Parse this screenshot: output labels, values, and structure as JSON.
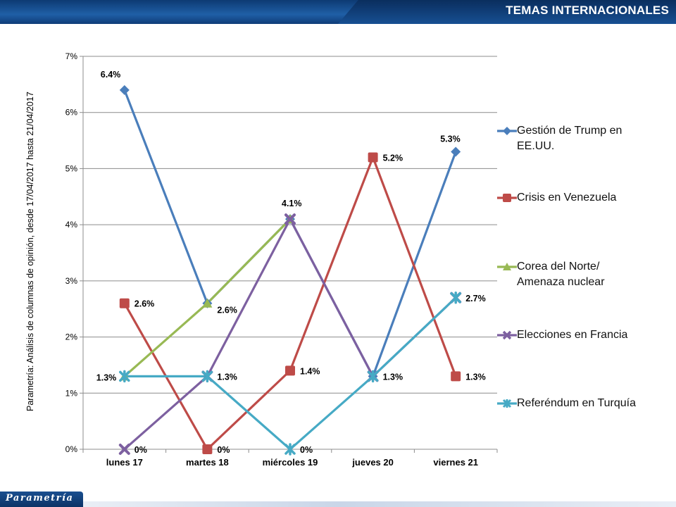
{
  "header": {
    "title": "TEMAS INTERNACIONALES"
  },
  "footer": {
    "logo_text": "Parametría"
  },
  "side_note": "Parametría: Análisis de columnas de opinión, desde 17/04/2017 hasta 21/04/2017",
  "chart_data": {
    "type": "line",
    "categories": [
      "lunes 17",
      "martes 18",
      "miércoles 19",
      "jueves 20",
      "viernes 21"
    ],
    "y_ticks": [
      "0%",
      "1%",
      "2%",
      "3%",
      "4%",
      "5%",
      "6%",
      "7%"
    ],
    "ylim": [
      0,
      7
    ],
    "grid": true,
    "legend_position": "right",
    "series": [
      {
        "name_lines": [
          "Gestión de Trump en",
          "EE.UU."
        ],
        "color": "#4a7ebb",
        "marker": "diamond",
        "values": [
          6.4,
          2.6,
          4.1,
          1.3,
          5.3
        ],
        "labels": [
          "6.4%",
          "",
          "",
          "",
          "5.3%"
        ]
      },
      {
        "name_lines": [
          "Crisis en Venezuela"
        ],
        "color": "#be4b48",
        "marker": "square",
        "values": [
          2.6,
          0,
          1.4,
          5.2,
          1.3
        ],
        "labels": [
          "2.6%",
          "0%",
          "1.4%",
          "5.2%",
          "1.3%"
        ]
      },
      {
        "name_lines": [
          "Corea del Norte/",
          "Amenaza nuclear"
        ],
        "color": "#98b954",
        "marker": "triangle",
        "values": [
          1.3,
          2.6,
          4.1,
          null,
          null
        ],
        "labels": [
          "",
          "2.6%",
          "4.1%",
          "",
          ""
        ]
      },
      {
        "name_lines": [
          "Elecciones en Francia"
        ],
        "color": "#7d60a0",
        "marker": "x",
        "values": [
          0,
          1.3,
          4.1,
          1.3,
          2.7
        ],
        "labels": [
          "0%",
          "",
          "",
          "",
          ""
        ]
      },
      {
        "name_lines": [
          "Referéndum en Turquía"
        ],
        "color": "#46aac5",
        "marker": "star",
        "values": [
          1.3,
          1.3,
          0,
          1.3,
          2.7
        ],
        "labels": [
          "1.3%",
          "1.3%",
          "0%",
          "1.3%",
          "2.7%"
        ]
      }
    ]
  }
}
